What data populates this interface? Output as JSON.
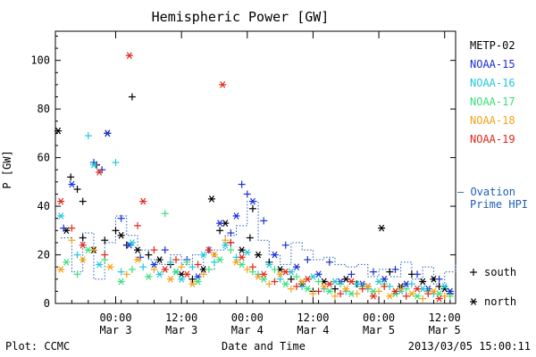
{
  "chart_data": {
    "type": "scatter",
    "title": "Hemispheric Power [GW]",
    "ylabel": "P [GW]",
    "xlabel": "Date and Time",
    "footer_left": "Plot: CCMC",
    "footer_right": "2013/03/05 15:00:11",
    "ylim": [
      0,
      112
    ],
    "yticks": [
      0,
      20,
      40,
      60,
      80,
      100
    ],
    "xlim": [
      -11,
      62
    ],
    "x_unit": "hours since 2013-03-03 00:00 UT",
    "x_ticks": [
      {
        "x": 0,
        "line1": "00:00",
        "line2": "Mar 3"
      },
      {
        "x": 12,
        "line1": "12:00",
        "line2": "Mar 3"
      },
      {
        "x": 24,
        "line1": "00:00",
        "line2": "Mar 4"
      },
      {
        "x": 36,
        "line1": "12:00",
        "line2": "Mar 4"
      },
      {
        "x": 48,
        "line1": "00:00",
        "line2": "Mar 5"
      },
      {
        "x": 60,
        "line1": "12:00",
        "line2": "Mar 5"
      }
    ],
    "legend": {
      "placement": "right",
      "satellites": [
        {
          "name": "METP-02",
          "color": "#000000"
        },
        {
          "name": "NOAA-15",
          "color": "#1a2fd6"
        },
        {
          "name": "NOAA-16",
          "color": "#22c8dc"
        },
        {
          "name": "NOAA-17",
          "color": "#39e07a"
        },
        {
          "name": "NOAA-18",
          "color": "#f4a21b"
        },
        {
          "name": "NOAA-19",
          "color": "#e02818"
        }
      ],
      "ovation_line1": "— Ovation",
      "ovation_line2": "Prime HPI",
      "ovation_color": "#1f5fb8",
      "south_symbol": "+",
      "south_label": "south",
      "north_symbol": "*",
      "north_label": "north"
    },
    "ovation": {
      "color": "#1f5fb8",
      "x": [
        -10,
        -8,
        -6,
        -4,
        -2,
        0,
        2,
        4,
        6,
        8,
        10,
        12,
        14,
        16,
        18,
        20,
        22,
        24,
        26,
        28,
        30,
        32,
        34,
        36,
        38,
        40,
        42,
        44,
        46,
        48,
        50,
        52,
        54,
        56,
        58,
        60,
        62
      ],
      "y": [
        27,
        13,
        29,
        10,
        25,
        36,
        28,
        22,
        18,
        16,
        20,
        16,
        20,
        14,
        22,
        28,
        32,
        42,
        26,
        20,
        16,
        25,
        22,
        18,
        19,
        16,
        15,
        16,
        11,
        14,
        11,
        17,
        10,
        15,
        8,
        13,
        16
      ]
    },
    "series": [
      {
        "name": "METP-02",
        "color": "#000000",
        "points": [
          [
            -10.5,
            71,
            "n"
          ],
          [
            -8.2,
            52,
            "s"
          ],
          [
            -7,
            47,
            "s"
          ],
          [
            -6,
            42,
            "s"
          ],
          [
            -3.5,
            57,
            "s"
          ],
          [
            -1.5,
            70,
            "n"
          ],
          [
            3.0,
            85,
            "s"
          ],
          [
            -9,
            30,
            "n"
          ],
          [
            -6,
            27,
            "s"
          ],
          [
            -4,
            22,
            "n"
          ],
          [
            -2,
            26,
            "s"
          ],
          [
            0,
            30,
            "s"
          ],
          [
            1,
            28,
            "n"
          ],
          [
            2,
            24,
            "s"
          ],
          [
            4,
            22,
            "n"
          ],
          [
            6,
            20,
            "s"
          ],
          [
            8,
            18,
            "n"
          ],
          [
            10,
            16,
            "s"
          ],
          [
            12,
            12,
            "n"
          ],
          [
            14,
            10,
            "s"
          ],
          [
            16,
            14,
            "n"
          ],
          [
            17.5,
            43,
            "n"
          ],
          [
            19,
            30,
            "s"
          ],
          [
            20,
            33,
            "n"
          ],
          [
            21,
            25,
            "s"
          ],
          [
            23,
            22,
            "n"
          ],
          [
            24.5,
            27,
            "s"
          ],
          [
            25,
            39,
            "s"
          ],
          [
            26,
            20,
            "n"
          ],
          [
            28,
            17,
            "s"
          ],
          [
            30,
            14,
            "n"
          ],
          [
            32,
            10,
            "s"
          ],
          [
            34,
            8,
            "n"
          ],
          [
            36,
            5,
            "s"
          ],
          [
            38,
            9,
            "n"
          ],
          [
            40,
            6,
            "s"
          ],
          [
            42,
            10,
            "n"
          ],
          [
            44,
            8,
            "s"
          ],
          [
            46,
            7,
            "n"
          ],
          [
            48.5,
            31,
            "n"
          ],
          [
            50,
            13,
            "s"
          ],
          [
            52,
            7,
            "n"
          ],
          [
            54,
            12,
            "s"
          ],
          [
            56,
            9,
            "n"
          ],
          [
            57,
            5,
            "s"
          ],
          [
            58,
            10,
            "n"
          ],
          [
            59,
            7,
            "s"
          ],
          [
            60,
            6,
            "n"
          ],
          [
            61,
            4,
            "s"
          ]
        ]
      },
      {
        "name": "NOAA-15",
        "color": "#1a2fd6",
        "points": [
          [
            -9.5,
            31,
            "s"
          ],
          [
            -8,
            49,
            "n"
          ],
          [
            -4,
            58,
            "s"
          ],
          [
            -2.5,
            55,
            "s"
          ],
          [
            -1.5,
            70,
            "n"
          ],
          [
            1,
            35,
            "s"
          ],
          [
            2.5,
            24,
            "n"
          ],
          [
            4.5,
            19,
            "s"
          ],
          [
            7,
            16,
            "n"
          ],
          [
            9,
            22,
            "s"
          ],
          [
            11,
            13,
            "n"
          ],
          [
            13,
            18,
            "s"
          ],
          [
            15,
            11,
            "n"
          ],
          [
            17,
            22,
            "s"
          ],
          [
            19,
            33,
            "n"
          ],
          [
            21,
            29,
            "s"
          ],
          [
            22,
            36,
            "n"
          ],
          [
            23,
            49,
            "s"
          ],
          [
            24,
            45,
            "s"
          ],
          [
            25,
            42,
            "n"
          ],
          [
            27,
            34,
            "s"
          ],
          [
            29,
            20,
            "n"
          ],
          [
            31,
            24,
            "s"
          ],
          [
            33,
            15,
            "n"
          ],
          [
            35,
            18,
            "s"
          ],
          [
            37,
            12,
            "n"
          ],
          [
            39,
            17,
            "s"
          ],
          [
            41,
            9,
            "n"
          ],
          [
            43,
            12,
            "s"
          ],
          [
            45,
            8,
            "n"
          ],
          [
            47,
            13,
            "s"
          ],
          [
            49,
            10,
            "n"
          ],
          [
            51,
            14,
            "s"
          ],
          [
            53,
            8,
            "n"
          ],
          [
            55,
            12,
            "s"
          ],
          [
            57,
            6,
            "n"
          ],
          [
            59,
            10,
            "s"
          ],
          [
            61,
            5,
            "n"
          ]
        ]
      },
      {
        "name": "NOAA-16",
        "color": "#22c8dc",
        "points": [
          [
            -10,
            36,
            "n"
          ],
          [
            -5,
            69,
            "s"
          ],
          [
            -4,
            57,
            "n"
          ],
          [
            0,
            58,
            "s"
          ],
          [
            -7,
            20,
            "s"
          ],
          [
            -3,
            16,
            "n"
          ],
          [
            1,
            13,
            "s"
          ],
          [
            3,
            25,
            "n"
          ],
          [
            5,
            15,
            "s"
          ],
          [
            8,
            12,
            "n"
          ],
          [
            10,
            17,
            "s"
          ],
          [
            12,
            10,
            "n"
          ],
          [
            14,
            15,
            "s"
          ],
          [
            16,
            20,
            "n"
          ],
          [
            18,
            17,
            "s"
          ],
          [
            20,
            24,
            "n"
          ],
          [
            22,
            19,
            "s"
          ],
          [
            24,
            21,
            "n"
          ],
          [
            26,
            12,
            "s"
          ],
          [
            28,
            16,
            "n"
          ],
          [
            30,
            10,
            "s"
          ],
          [
            32,
            13,
            "n"
          ],
          [
            34,
            7,
            "s"
          ],
          [
            36,
            11,
            "n"
          ],
          [
            38,
            6,
            "s"
          ],
          [
            40,
            9,
            "n"
          ],
          [
            42,
            5,
            "s"
          ],
          [
            44,
            8,
            "n"
          ],
          [
            46,
            6,
            "s"
          ],
          [
            48,
            9,
            "n"
          ],
          [
            50,
            7,
            "s"
          ],
          [
            52,
            5,
            "n"
          ],
          [
            54,
            8,
            "s"
          ],
          [
            56,
            6,
            "n"
          ],
          [
            58,
            4,
            "s"
          ],
          [
            60,
            7,
            "n"
          ]
        ]
      },
      {
        "name": "NOAA-17",
        "color": "#39e07a",
        "points": [
          [
            -9,
            17,
            "n"
          ],
          [
            -7,
            12,
            "s"
          ],
          [
            -5,
            22,
            "n"
          ],
          [
            -2,
            18,
            "s"
          ],
          [
            1,
            9,
            "n"
          ],
          [
            3,
            14,
            "s"
          ],
          [
            6,
            11,
            "n"
          ],
          [
            9,
            37,
            "s"
          ],
          [
            11,
            13,
            "n"
          ],
          [
            13,
            17,
            "s"
          ],
          [
            15,
            9,
            "n"
          ],
          [
            17,
            14,
            "s"
          ],
          [
            19,
            18,
            "n"
          ],
          [
            21,
            22,
            "s"
          ],
          [
            23,
            16,
            "n"
          ],
          [
            25,
            13,
            "s"
          ],
          [
            27,
            10,
            "n"
          ],
          [
            29,
            14,
            "s"
          ],
          [
            31,
            8,
            "n"
          ],
          [
            33,
            11,
            "s"
          ],
          [
            35,
            6,
            "n"
          ],
          [
            37,
            9,
            "s"
          ],
          [
            39,
            5,
            "n"
          ],
          [
            41,
            8,
            "s"
          ],
          [
            43,
            4,
            "n"
          ],
          [
            45,
            7,
            "s"
          ],
          [
            47,
            5,
            "n"
          ],
          [
            49,
            8,
            "s"
          ],
          [
            51,
            4,
            "n"
          ],
          [
            53,
            6,
            "s"
          ],
          [
            55,
            3,
            "n"
          ],
          [
            57,
            5,
            "s"
          ],
          [
            59,
            4,
            "n"
          ],
          [
            61,
            3,
            "s"
          ]
        ]
      },
      {
        "name": "NOAA-18",
        "color": "#f4a21b",
        "points": [
          [
            -10,
            14,
            "n"
          ],
          [
            -8,
            26,
            "s"
          ],
          [
            -6,
            18,
            "n"
          ],
          [
            -4,
            22,
            "s"
          ],
          [
            -1,
            15,
            "n"
          ],
          [
            2,
            12,
            "s"
          ],
          [
            4,
            18,
            "n"
          ],
          [
            7,
            14,
            "s"
          ],
          [
            10,
            10,
            "n"
          ],
          [
            12,
            15,
            "s"
          ],
          [
            14,
            8,
            "n"
          ],
          [
            16,
            12,
            "s"
          ],
          [
            18,
            20,
            "n"
          ],
          [
            20,
            26,
            "s"
          ],
          [
            22,
            17,
            "n"
          ],
          [
            24,
            14,
            "s"
          ],
          [
            26,
            11,
            "n"
          ],
          [
            28,
            8,
            "s"
          ],
          [
            30,
            12,
            "n"
          ],
          [
            32,
            6,
            "s"
          ],
          [
            34,
            9,
            "n"
          ],
          [
            36,
            4,
            "s"
          ],
          [
            38,
            7,
            "n"
          ],
          [
            40,
            3,
            "s"
          ],
          [
            42,
            6,
            "n"
          ],
          [
            44,
            4,
            "s"
          ],
          [
            46,
            7,
            "n"
          ],
          [
            48,
            5,
            "s"
          ],
          [
            50,
            3,
            "n"
          ],
          [
            52,
            6,
            "s"
          ],
          [
            54,
            4,
            "n"
          ],
          [
            56,
            2,
            "s"
          ],
          [
            58,
            5,
            "n"
          ],
          [
            60,
            3,
            "s"
          ]
        ]
      },
      {
        "name": "NOAA-19",
        "color": "#e02818",
        "points": [
          [
            -10,
            42,
            "n"
          ],
          [
            -8,
            31,
            "s"
          ],
          [
            -6,
            24,
            "n"
          ],
          [
            -3,
            54,
            "n"
          ],
          [
            -2,
            20,
            "s"
          ],
          [
            2.5,
            102,
            "n"
          ],
          [
            4,
            32,
            "s"
          ],
          [
            5,
            42,
            "n"
          ],
          [
            7,
            22,
            "s"
          ],
          [
            9,
            14,
            "n"
          ],
          [
            11,
            18,
            "s"
          ],
          [
            13,
            12,
            "n"
          ],
          [
            15,
            16,
            "s"
          ],
          [
            17,
            22,
            "n"
          ],
          [
            19.5,
            90,
            "n"
          ],
          [
            21,
            25,
            "s"
          ],
          [
            23,
            19,
            "n"
          ],
          [
            25,
            15,
            "s"
          ],
          [
            27,
            12,
            "n"
          ],
          [
            29,
            9,
            "s"
          ],
          [
            31,
            13,
            "n"
          ],
          [
            33,
            7,
            "s"
          ],
          [
            35,
            10,
            "n"
          ],
          [
            37,
            5,
            "s"
          ],
          [
            39,
            8,
            "n"
          ],
          [
            41,
            4,
            "s"
          ],
          [
            43,
            9,
            "n"
          ],
          [
            45,
            6,
            "s"
          ],
          [
            47,
            3,
            "n"
          ],
          [
            49,
            7,
            "s"
          ],
          [
            51,
            5,
            "n"
          ],
          [
            53,
            3,
            "s"
          ],
          [
            55,
            6,
            "n"
          ],
          [
            57,
            4,
            "s"
          ],
          [
            59,
            2,
            "n"
          ]
        ]
      }
    ]
  }
}
